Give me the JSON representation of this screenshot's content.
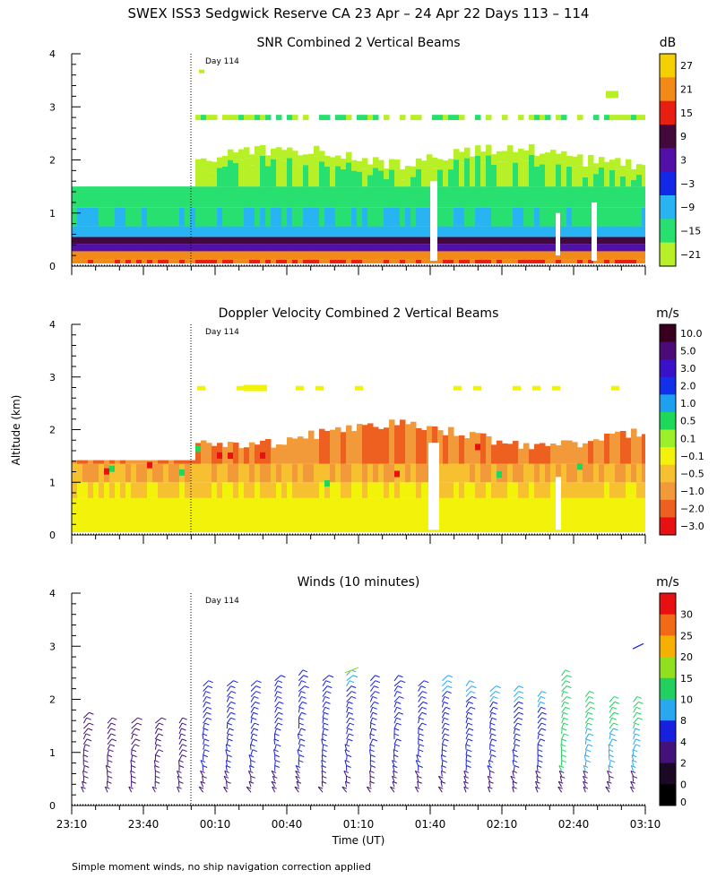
{
  "figure": {
    "title": "SWEX ISS3 Sedgwick Reserve CA  23 Apr – 24 Apr 22 Days 113 – 114",
    "ylabel": "Altitude (km)",
    "xlabel": "Time (UT)",
    "footnote": "Simple moment winds, no ship navigation correction applied",
    "day_marker": "Day 114"
  },
  "chart_data": [
    {
      "type": "heatmap",
      "title": "SNR Combined 2 Vertical Beams",
      "units": "dB",
      "ylim": [
        0,
        4
      ],
      "y_ticks": [
        "0",
        "1",
        "2",
        "3",
        "4"
      ],
      "x_tick_labels": [],
      "colorbar": {
        "labels": [
          "27",
          "21",
          "15",
          "9",
          "3",
          "−3",
          "−9",
          "−15",
          "−21"
        ],
        "colors": [
          "#f5d000",
          "#f28a18",
          "#e81e10",
          "#43083c",
          "#5210a6",
          "#1228e6",
          "#28b4f2",
          "#28e070",
          "#b8f028"
        ]
      },
      "profile": [
        {
          "alt": 0.1,
          "level": 6
        },
        {
          "alt": 0.25,
          "level": 7
        },
        {
          "alt": 0.4,
          "level": 4
        },
        {
          "alt": 0.55,
          "level": 3
        },
        {
          "alt": 0.75,
          "level": 2
        },
        {
          "alt": 1.1,
          "level": 1
        },
        {
          "alt": 1.5,
          "level": 1
        },
        {
          "alt": 1.8,
          "level": 0
        }
      ]
    },
    {
      "type": "heatmap",
      "title": "Doppler Velocity Combined 2 Vertical Beams",
      "units": "m/s",
      "ylim": [
        0,
        4
      ],
      "y_ticks": [
        "0",
        "1",
        "2",
        "3",
        "4"
      ],
      "x_tick_labels": [],
      "colorbar": {
        "labels": [
          "10.0",
          "5.0",
          "3.0",
          "2.0",
          "1.0",
          "0.5",
          "0.1",
          "−0.1",
          "−0.5",
          "−1.0",
          "−2.0",
          "−3.0"
        ],
        "colors": [
          "#38001c",
          "#4a0a78",
          "#3a10c8",
          "#1230ea",
          "#1ea0f0",
          "#1ed85a",
          "#9cf02a",
          "#f2f20a",
          "#f6c030",
          "#f29a3a",
          "#ee6020",
          "#e81010"
        ]
      },
      "profile": [
        {
          "alt": 0.35,
          "level": 7
        },
        {
          "alt": 0.9,
          "level": 8
        },
        {
          "alt": 1.4,
          "level": 9
        },
        {
          "alt": 1.9,
          "level": 10
        }
      ]
    },
    {
      "type": "scatter",
      "title": "Winds (10 minutes)",
      "units": "m/s",
      "ylim": [
        0,
        4
      ],
      "y_ticks": [
        "0",
        "1",
        "2",
        "3",
        "4"
      ],
      "x_tick_labels": [
        "23:10",
        "23:40",
        "00:10",
        "00:40",
        "01:10",
        "01:40",
        "02:10",
        "02:40",
        "03:10"
      ],
      "colorbar": {
        "labels": [
          "30",
          "25",
          "20",
          "15",
          "10",
          "8",
          "4",
          "2",
          "0"
        ],
        "colors": [
          "#e81010",
          "#f26a18",
          "#f5b000",
          "#90e020",
          "#22d060",
          "#28a8f0",
          "#1820e0",
          "#44107a",
          "#1a0824",
          "#000000"
        ]
      },
      "x_range_hours": [
        -0.8333,
        3.1667
      ],
      "day_boundary_hour": 0,
      "profiles": [
        {
          "t": -0.75,
          "top": 1.7,
          "speed": 3
        },
        {
          "t": -0.5833,
          "top": 1.65,
          "speed": 3
        },
        {
          "t": -0.4167,
          "top": 1.65,
          "speed": 3
        },
        {
          "t": -0.25,
          "top": 1.65,
          "speed": 3
        },
        {
          "t": -0.0833,
          "top": 1.65,
          "speed": 3
        },
        {
          "t": 0.0833,
          "top": 2.35,
          "speed": 4
        },
        {
          "t": 0.25,
          "top": 2.35,
          "speed": 4
        },
        {
          "t": 0.4167,
          "top": 2.35,
          "speed": 5
        },
        {
          "t": 0.5833,
          "top": 2.45,
          "speed": 5
        },
        {
          "t": 0.75,
          "top": 2.5,
          "speed": 5
        },
        {
          "t": 0.9167,
          "top": 2.45,
          "speed": 5
        },
        {
          "t": 1.0833,
          "top": 2.5,
          "speed": 6
        },
        {
          "t": 1.25,
          "top": 2.45,
          "speed": 5
        },
        {
          "t": 1.4167,
          "top": 2.4,
          "speed": 5
        },
        {
          "t": 1.5833,
          "top": 2.35,
          "speed": 5
        },
        {
          "t": 1.75,
          "top": 2.4,
          "speed": 6
        },
        {
          "t": 1.9167,
          "top": 2.3,
          "speed": 6
        },
        {
          "t": 2.0833,
          "top": 2.2,
          "speed": 6
        },
        {
          "t": 2.25,
          "top": 2.2,
          "speed": 7
        },
        {
          "t": 2.4167,
          "top": 2.1,
          "speed": 7
        },
        {
          "t": 2.5833,
          "top": 2.5,
          "speed": 8
        },
        {
          "t": 2.75,
          "top": 2.1,
          "speed": 9
        },
        {
          "t": 2.9167,
          "top": 2.05,
          "speed": 9
        },
        {
          "t": 3.0833,
          "top": 2.0,
          "speed": 9
        }
      ]
    }
  ]
}
